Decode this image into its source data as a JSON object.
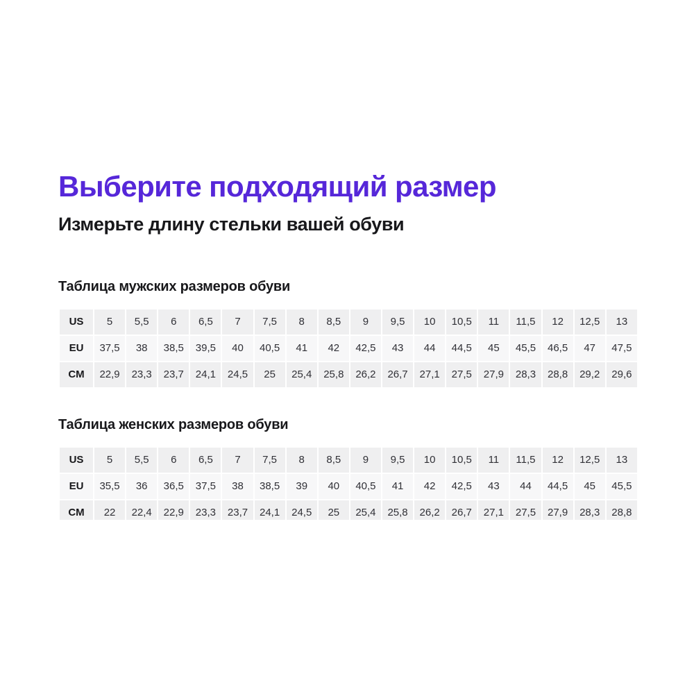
{
  "header": {
    "title": "Выберите подходящий размер",
    "subtitle": "Измерьте длину стельки вашей обуви"
  },
  "colors": {
    "accent": "#5627d9",
    "row_odd": "#efeff0",
    "row_even": "#f7f7f8",
    "heading_text": "#18181b",
    "cell_text": "#303036"
  },
  "tables": [
    {
      "id": "mens",
      "title": "Таблица мужских размеров обуви",
      "rows": [
        {
          "label": "US",
          "values": [
            "5",
            "5,5",
            "6",
            "6,5",
            "7",
            "7,5",
            "8",
            "8,5",
            "9",
            "9,5",
            "10",
            "10,5",
            "11",
            "11,5",
            "12",
            "12,5",
            "13"
          ]
        },
        {
          "label": "EU",
          "values": [
            "37,5",
            "38",
            "38,5",
            "39,5",
            "40",
            "40,5",
            "41",
            "42",
            "42,5",
            "43",
            "44",
            "44,5",
            "45",
            "45,5",
            "46,5",
            "47",
            "47,5"
          ]
        },
        {
          "label": "CM",
          "values": [
            "22,9",
            "23,3",
            "23,7",
            "24,1",
            "24,5",
            "25",
            "25,4",
            "25,8",
            "26,2",
            "26,7",
            "27,1",
            "27,5",
            "27,9",
            "28,3",
            "28,8",
            "29,2",
            "29,6"
          ]
        }
      ]
    },
    {
      "id": "womens",
      "title": "Таблица женских размеров обуви",
      "rows": [
        {
          "label": "US",
          "values": [
            "5",
            "5,5",
            "6",
            "6,5",
            "7",
            "7,5",
            "8",
            "8,5",
            "9",
            "9,5",
            "10",
            "10,5",
            "11",
            "11,5",
            "12",
            "12,5",
            "13"
          ]
        },
        {
          "label": "EU",
          "values": [
            "35,5",
            "36",
            "36,5",
            "37,5",
            "38",
            "38,5",
            "39",
            "40",
            "40,5",
            "41",
            "42",
            "42,5",
            "43",
            "44",
            "44,5",
            "45",
            "45,5"
          ]
        },
        {
          "label": "CM",
          "values": [
            "22",
            "22,4",
            "22,9",
            "23,3",
            "23,7",
            "24,1",
            "24,5",
            "25",
            "25,4",
            "25,8",
            "26,2",
            "26,7",
            "27,1",
            "27,5",
            "27,9",
            "28,3",
            "28,8"
          ]
        }
      ]
    }
  ]
}
